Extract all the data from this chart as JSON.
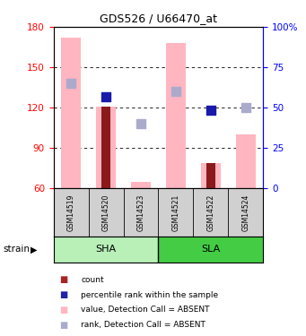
{
  "title": "GDS526 / U66470_at",
  "samples": [
    "GSM14519",
    "GSM14520",
    "GSM14523",
    "GSM14521",
    "GSM14522",
    "GSM14524"
  ],
  "ylim_left": [
    60,
    180
  ],
  "ylim_right": [
    0,
    100
  ],
  "yticks_left": [
    60,
    90,
    120,
    150,
    180
  ],
  "yticks_right": [
    0,
    25,
    50,
    75,
    100
  ],
  "ytick_labels_right": [
    "0",
    "25",
    "50",
    "75",
    "100%"
  ],
  "pink_bars": {
    "GSM14519": 172,
    "GSM14520": 121,
    "GSM14523": 65,
    "GSM14521": 168,
    "GSM14522": 79,
    "GSM14524": 100
  },
  "red_bars": {
    "GSM14520": 121,
    "GSM14522": 79
  },
  "blue_squares": {
    "GSM14520": 128,
    "GSM14522": 118
  },
  "light_blue_squares": {
    "GSM14519": 138,
    "GSM14523": 108,
    "GSM14521": 132,
    "GSM14524": 120
  },
  "bar_bottom": 60,
  "pink_color": "#ffb6c1",
  "dark_red_color": "#8b1a1a",
  "blue_color": "#1a1aaa",
  "light_blue_color": "#aaaacc",
  "sha_color": "#b8f0b8",
  "sla_color": "#44cc44",
  "gray_color": "#d0d0d0",
  "legend_colors": [
    "#aa2222",
    "#2222aa",
    "#ffb6c1",
    "#aaaacc"
  ],
  "legend_labels": [
    "count",
    "percentile rank within the sample",
    "value, Detection Call = ABSENT",
    "rank, Detection Call = ABSENT"
  ]
}
